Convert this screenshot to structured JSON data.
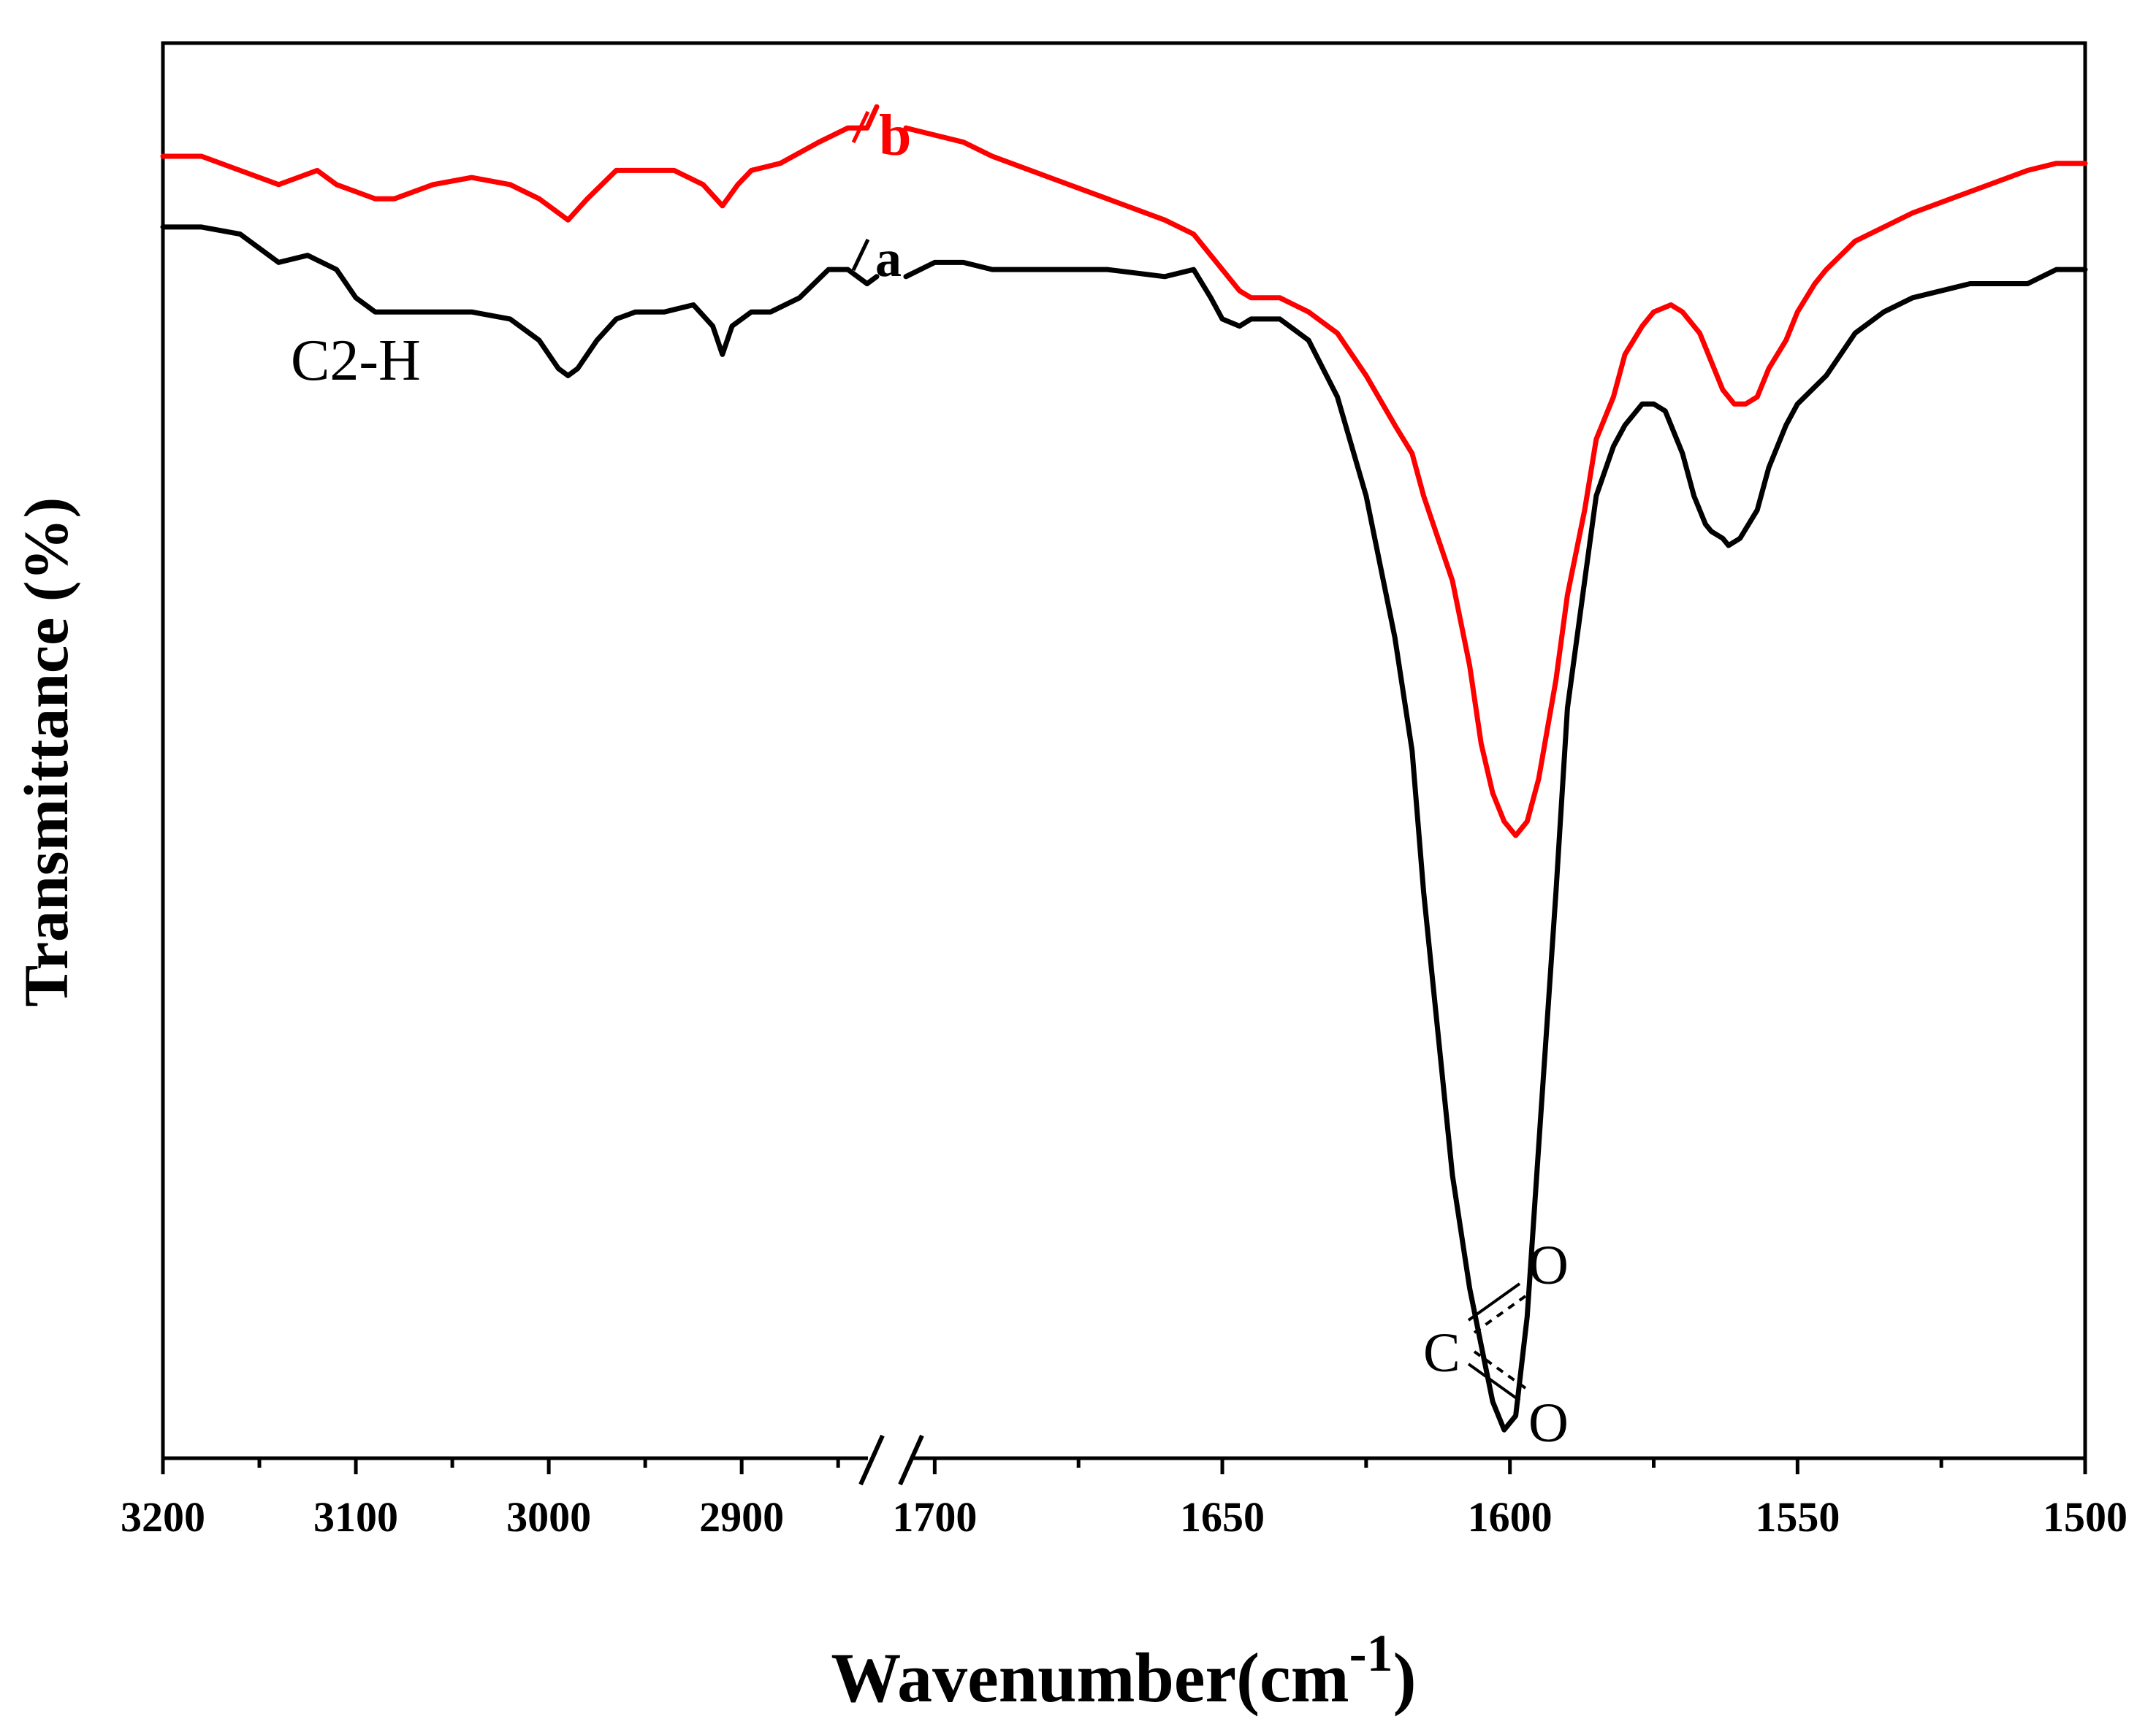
{
  "chart_data": {
    "type": "line",
    "title": "",
    "xlabel": "Wavenumber(cm",
    "xlabel_superscript": "-1",
    "xlabel_close": ")",
    "ylabel": "Transmittance (%)",
    "y_ticks_shown": false,
    "x_segments": [
      {
        "name": "left",
        "range": [
          3200,
          2830
        ],
        "ticks": [
          3200,
          3100,
          3000,
          2900
        ],
        "tick_labels": [
          "3200",
          "3100",
          "3000",
          "2900"
        ]
      },
      {
        "name": "right",
        "range": [
          1705,
          1500
        ],
        "ticks": [
          1700,
          1650,
          1600,
          1550,
          1500
        ],
        "tick_labels": [
          "1700",
          "1650",
          "1600",
          "1550",
          "1500"
        ]
      }
    ],
    "axis_break": true,
    "ylim": [
      0,
      100
    ],
    "series": [
      {
        "name": "a",
        "color": "#000000",
        "left": {
          "x": [
            3200,
            3180,
            3160,
            3140,
            3125,
            3110,
            3100,
            3090,
            3075,
            3060,
            3040,
            3020,
            3005,
            2995,
            2990,
            2985,
            2975,
            2965,
            2955,
            2940,
            2925,
            2915,
            2910,
            2905,
            2895,
            2885,
            2870,
            2855,
            2845,
            2835,
            2830
          ],
          "y": [
            87,
            87,
            86.5,
            84.5,
            85,
            84,
            82,
            81,
            81,
            81,
            81,
            80.5,
            79,
            77,
            76.5,
            77,
            79,
            80.5,
            81,
            81,
            81.5,
            80,
            78,
            80,
            81,
            81,
            82,
            84,
            84,
            83,
            83.5
          ]
        },
        "right": {
          "x": [
            1705,
            1700,
            1695,
            1690,
            1680,
            1670,
            1660,
            1655,
            1652,
            1650,
            1647,
            1645,
            1640,
            1635,
            1630,
            1625,
            1620,
            1617,
            1615,
            1610,
            1607,
            1605,
            1603,
            1601,
            1599,
            1597,
            1595,
            1592,
            1590,
            1587,
            1585,
            1582,
            1580,
            1577,
            1575,
            1573,
            1570,
            1568,
            1566,
            1565,
            1563,
            1562,
            1560,
            1557,
            1555,
            1552,
            1550,
            1545,
            1540,
            1535,
            1530,
            1520,
            1510,
            1505,
            1500
          ],
          "y": [
            83.5,
            84.5,
            84.5,
            84,
            84,
            84,
            83.5,
            84,
            82,
            80.5,
            80,
            80.5,
            80.5,
            79,
            75,
            68,
            58,
            50,
            40,
            20,
            12,
            8,
            4,
            2,
            3,
            10,
            22,
            40,
            53,
            62,
            68,
            71.5,
            73,
            74.5,
            74.5,
            74,
            71,
            68,
            66,
            65.5,
            65,
            64.5,
            65,
            67,
            70,
            73,
            74.5,
            76.5,
            79.5,
            81,
            82,
            83,
            83,
            84,
            84
          ]
        }
      },
      {
        "name": "b",
        "color": "#ff0000",
        "left": {
          "x": [
            3200,
            3180,
            3160,
            3140,
            3120,
            3110,
            3100,
            3090,
            3080,
            3060,
            3040,
            3020,
            3005,
            2995,
            2990,
            2980,
            2965,
            2950,
            2935,
            2920,
            2910,
            2902,
            2895,
            2880,
            2860,
            2845,
            2835,
            2830
          ],
          "y": [
            92,
            92,
            91,
            90,
            91,
            90,
            89.5,
            89,
            89,
            90,
            90.5,
            90,
            89,
            88,
            87.5,
            89,
            91,
            91,
            91,
            90,
            88.5,
            90,
            91,
            91.5,
            93,
            94,
            94,
            95.5
          ]
        },
        "right": {
          "x": [
            1705,
            1700,
            1695,
            1690,
            1680,
            1670,
            1660,
            1655,
            1650,
            1647,
            1645,
            1640,
            1635,
            1630,
            1625,
            1620,
            1617,
            1615,
            1610,
            1607,
            1605,
            1603,
            1601,
            1599,
            1597,
            1595,
            1592,
            1590,
            1587,
            1585,
            1582,
            1580,
            1577,
            1575,
            1572,
            1570,
            1567,
            1565,
            1563,
            1561,
            1559,
            1557,
            1555,
            1552,
            1550,
            1547,
            1545,
            1540,
            1530,
            1520,
            1510,
            1505,
            1500
          ],
          "y": [
            94,
            93.5,
            93,
            92,
            90.5,
            89,
            87.5,
            86.5,
            84,
            82.5,
            82,
            82,
            81,
            79.5,
            76.5,
            73,
            71,
            68,
            62,
            56,
            50.5,
            47,
            45,
            44,
            45,
            48,
            55,
            61,
            67,
            72,
            75,
            78,
            80,
            81,
            81.5,
            81,
            79.5,
            77.5,
            75.5,
            74.5,
            74.5,
            75,
            77,
            79,
            81,
            83,
            84,
            86,
            88,
            89.5,
            91,
            91.5,
            91.5
          ]
        }
      }
    ],
    "annotations": {
      "label_a": "a",
      "label_b": "b",
      "peak_ch": "C2-H",
      "carboxylate_c": "C",
      "carboxylate_o1": "O",
      "carboxylate_o2": "O"
    }
  }
}
